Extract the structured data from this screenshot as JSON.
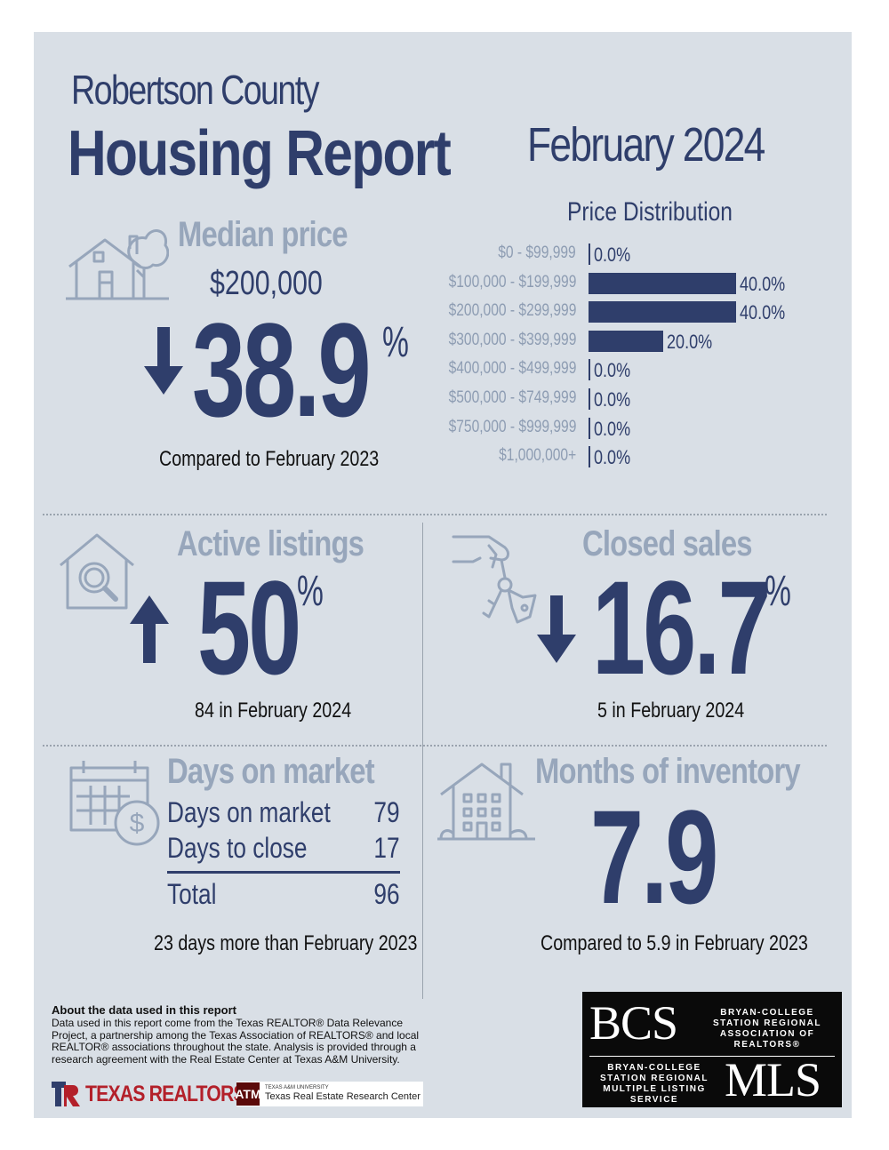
{
  "header": {
    "county": "Robertson County",
    "report_title": "Housing Report",
    "period": "February 2024"
  },
  "median_price": {
    "label": "Median price",
    "value": "$200,000",
    "change": "38.9",
    "change_unit": "%",
    "direction": "down",
    "comparison": "Compared to February 2023",
    "icon": "house-tree-icon"
  },
  "price_distribution": {
    "title": "Price Distribution",
    "chart_data": {
      "type": "bar",
      "orientation": "horizontal",
      "categories": [
        "$0 - $99,999",
        "$100,000 - $199,999",
        "$200,000 - $299,999",
        "$300,000 - $399,999",
        "$400,000 - $499,999",
        "$500,000 - $749,999",
        "$750,000 - $999,999",
        "$1,000,000+"
      ],
      "values": [
        0.0,
        40.0,
        40.0,
        20.0,
        0.0,
        0.0,
        0.0,
        0.0
      ],
      "value_labels": [
        "0.0%",
        "40.0%",
        "40.0%",
        "20.0%",
        "0.0%",
        "0.0%",
        "0.0%",
        "0.0%"
      ],
      "xlim": [
        0,
        40
      ],
      "bar_color": "#2f3e6b"
    }
  },
  "active_listings": {
    "label": "Active listings",
    "change": "50",
    "change_unit": "%",
    "direction": "up",
    "caption": "84 in February 2024",
    "icon": "house-search-icon"
  },
  "closed_sales": {
    "label": "Closed sales",
    "change": "16.7",
    "change_unit": "%",
    "direction": "down",
    "caption": "5 in February 2024",
    "icon": "hand-keys-icon"
  },
  "days_on_market": {
    "label": "Days on market",
    "rows": [
      {
        "label": "Days on market",
        "value": "79"
      },
      {
        "label": "Days to close",
        "value": "17"
      }
    ],
    "total_label": "Total",
    "total_value": "96",
    "caption": "23 days more than February 2023",
    "icon": "calendar-dollar-icon"
  },
  "months_inventory": {
    "label": "Months of inventory",
    "value": "7.9",
    "caption": "Compared to 5.9 in February 2023",
    "icon": "apartment-building-icon"
  },
  "about": {
    "title": "About the data used in this report",
    "text": "Data used in this report come from the Texas REALTOR® Data Relevance Project, a partnership among the Texas Association of REALTORS® and local REALTOR® associations throughout the state. Analysis is provided through a research agreement with the Real Estate Center at Texas A&M University."
  },
  "logos": {
    "texas_realtors": "TEXAS REALTORS",
    "tamu_small": "TEXAS A&M UNIVERSITY",
    "tamu_center": "Texas Real Estate Research Center",
    "bcs_big": "BCS",
    "bcs_assoc": "BRYAN-COLLEGE STATION REGIONAL ASSOCIATION OF REALTORS®",
    "mls_big": "MLS",
    "mls_desc": "BRYAN-COLLEGE STATION REGIONAL MULTIPLE LISTING SERVICE",
    "tamu_mark": "ATM",
    "texas_realtors_mark": "TR"
  },
  "colors": {
    "navy": "#2f3e6b",
    "muted": "#8e9db3",
    "background": "#d9dfe6"
  }
}
